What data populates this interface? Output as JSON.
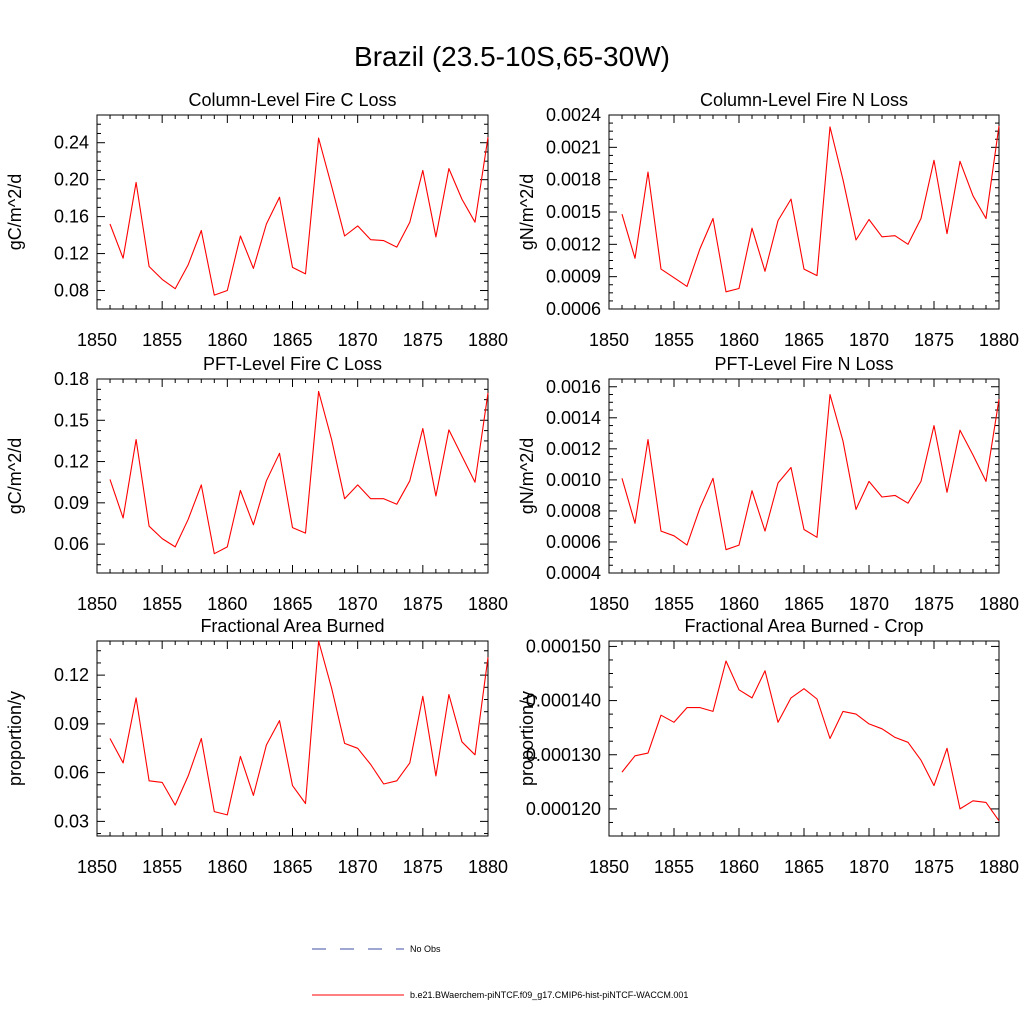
{
  "page_title": "Brazil (23.5-10S,65-30W)",
  "colors": {
    "model_line": "#ff0000",
    "obs_line": "#3b4fa6",
    "axis": "#000000"
  },
  "legend": {
    "obs_label": "No Obs",
    "model_label": "b.e21.BWaerchem-piNTCF.f09_g17.CMIP6-hist-piNTCF-WACCM.001"
  },
  "chart_data": [
    {
      "type": "line",
      "title": "Column-Level Fire C Loss",
      "ylabel": "gC/m^2/d",
      "xlim": [
        1850,
        1880
      ],
      "ylim": [
        0.06,
        0.27
      ],
      "xticks": [
        "1850",
        "1855",
        "1860",
        "1865",
        "1870",
        "1875",
        "1880"
      ],
      "yticks": [
        "0.08",
        "0.12",
        "0.16",
        "0.20",
        "0.24"
      ],
      "x": [
        1851,
        1852,
        1853,
        1854,
        1855,
        1856,
        1857,
        1858,
        1859,
        1860,
        1861,
        1862,
        1863,
        1864,
        1865,
        1866,
        1867,
        1868,
        1869,
        1870,
        1871,
        1872,
        1873,
        1874,
        1875,
        1876,
        1877,
        1878,
        1879,
        1880
      ],
      "y": [
        0.152,
        0.115,
        0.197,
        0.106,
        0.092,
        0.082,
        0.108,
        0.145,
        0.075,
        0.08,
        0.139,
        0.104,
        0.152,
        0.181,
        0.105,
        0.098,
        0.245,
        0.193,
        0.139,
        0.15,
        0.135,
        0.134,
        0.127,
        0.154,
        0.21,
        0.138,
        0.212,
        0.179,
        0.154,
        0.246
      ]
    },
    {
      "type": "line",
      "title": "Column-Level Fire N Loss",
      "ylabel": "gN/m^2/d",
      "xlim": [
        1850,
        1880
      ],
      "ylim": [
        0.0006,
        0.0024
      ],
      "xticks": [
        "1850",
        "1855",
        "1860",
        "1865",
        "1870",
        "1875",
        "1880"
      ],
      "yticks": [
        "0.0006",
        "0.0009",
        "0.0012",
        "0.0015",
        "0.0018",
        "0.0021",
        "0.0024"
      ],
      "x": [
        1851,
        1852,
        1853,
        1854,
        1855,
        1856,
        1857,
        1858,
        1859,
        1860,
        1861,
        1862,
        1863,
        1864,
        1865,
        1866,
        1867,
        1868,
        1869,
        1870,
        1871,
        1872,
        1873,
        1874,
        1875,
        1876,
        1877,
        1878,
        1879,
        1880
      ],
      "y": [
        0.00148,
        0.00107,
        0.00187,
        0.00097,
        0.00089,
        0.00081,
        0.00116,
        0.00144,
        0.00076,
        0.00079,
        0.00135,
        0.00095,
        0.00142,
        0.00162,
        0.00097,
        0.00091,
        0.00229,
        0.0018,
        0.00124,
        0.00143,
        0.00127,
        0.00128,
        0.0012,
        0.00144,
        0.00198,
        0.0013,
        0.00197,
        0.00165,
        0.00144,
        0.0023
      ]
    },
    {
      "type": "line",
      "title": "PFT-Level Fire C Loss",
      "ylabel": "gC/m^2/d",
      "xlim": [
        1850,
        1880
      ],
      "ylim": [
        0.039,
        0.18
      ],
      "xticks": [
        "1850",
        "1855",
        "1860",
        "1865",
        "1870",
        "1875",
        "1880"
      ],
      "yticks": [
        "0.06",
        "0.09",
        "0.12",
        "0.15",
        "0.18"
      ],
      "x": [
        1851,
        1852,
        1853,
        1854,
        1855,
        1856,
        1857,
        1858,
        1859,
        1860,
        1861,
        1862,
        1863,
        1864,
        1865,
        1866,
        1867,
        1868,
        1869,
        1870,
        1871,
        1872,
        1873,
        1874,
        1875,
        1876,
        1877,
        1878,
        1879,
        1880
      ],
      "y": [
        0.107,
        0.079,
        0.136,
        0.073,
        0.064,
        0.058,
        0.078,
        0.103,
        0.053,
        0.058,
        0.099,
        0.074,
        0.106,
        0.126,
        0.072,
        0.068,
        0.171,
        0.136,
        0.093,
        0.103,
        0.093,
        0.093,
        0.089,
        0.106,
        0.144,
        0.095,
        0.143,
        0.124,
        0.105,
        0.17
      ]
    },
    {
      "type": "line",
      "title": "PFT-Level Fire N Loss",
      "ylabel": "gN/m^2/d",
      "xlim": [
        1850,
        1880
      ],
      "ylim": [
        0.0004,
        0.00165
      ],
      "xticks": [
        "1850",
        "1855",
        "1860",
        "1865",
        "1870",
        "1875",
        "1880"
      ],
      "yticks": [
        "0.0004",
        "0.0006",
        "0.0008",
        "0.0010",
        "0.0012",
        "0.0014",
        "0.0016"
      ],
      "x": [
        1851,
        1852,
        1853,
        1854,
        1855,
        1856,
        1857,
        1858,
        1859,
        1860,
        1861,
        1862,
        1863,
        1864,
        1865,
        1866,
        1867,
        1868,
        1869,
        1870,
        1871,
        1872,
        1873,
        1874,
        1875,
        1876,
        1877,
        1878,
        1879,
        1880
      ],
      "y": [
        0.00101,
        0.00072,
        0.00126,
        0.00067,
        0.00064,
        0.00058,
        0.00082,
        0.00101,
        0.00055,
        0.00058,
        0.00093,
        0.00067,
        0.00098,
        0.00108,
        0.00068,
        0.00063,
        0.00155,
        0.00125,
        0.00081,
        0.00099,
        0.00089,
        0.0009,
        0.00085,
        0.00099,
        0.00135,
        0.00092,
        0.00132,
        0.00116,
        0.00099,
        0.00152
      ]
    },
    {
      "type": "line",
      "title": "Fractional Area Burned",
      "ylabel": "proportion/y",
      "xlim": [
        1850,
        1880
      ],
      "ylim": [
        0.021,
        0.141
      ],
      "xticks": [
        "1850",
        "1855",
        "1860",
        "1865",
        "1870",
        "1875",
        "1880"
      ],
      "yticks": [
        "0.03",
        "0.06",
        "0.09",
        "0.12"
      ],
      "x": [
        1851,
        1852,
        1853,
        1854,
        1855,
        1856,
        1857,
        1858,
        1859,
        1860,
        1861,
        1862,
        1863,
        1864,
        1865,
        1866,
        1867,
        1868,
        1869,
        1870,
        1871,
        1872,
        1873,
        1874,
        1875,
        1876,
        1877,
        1878,
        1879,
        1880
      ],
      "y": [
        0.081,
        0.066,
        0.106,
        0.055,
        0.054,
        0.04,
        0.058,
        0.081,
        0.036,
        0.034,
        0.07,
        0.046,
        0.077,
        0.092,
        0.052,
        0.041,
        0.141,
        0.112,
        0.078,
        0.075,
        0.065,
        0.053,
        0.055,
        0.066,
        0.107,
        0.058,
        0.108,
        0.079,
        0.071,
        0.131
      ]
    },
    {
      "type": "line",
      "title": "Fractional Area Burned - Crop",
      "ylabel": "proportion/y",
      "xlim": [
        1850,
        1880
      ],
      "ylim": [
        0.000115,
        0.000151
      ],
      "xticks": [
        "1850",
        "1855",
        "1860",
        "1865",
        "1870",
        "1875",
        "1880"
      ],
      "yticks": [
        "0.000120",
        "0.000130",
        "0.000140",
        "0.000150"
      ],
      "x": [
        1851,
        1852,
        1853,
        1854,
        1855,
        1856,
        1857,
        1858,
        1859,
        1860,
        1861,
        1862,
        1863,
        1864,
        1865,
        1866,
        1867,
        1868,
        1869,
        1870,
        1871,
        1872,
        1873,
        1874,
        1875,
        1876,
        1877,
        1878,
        1879,
        1880
      ],
      "y": [
        0.0001268,
        0.0001298,
        0.0001303,
        0.0001373,
        0.000136,
        0.0001387,
        0.0001387,
        0.000138,
        0.0001473,
        0.000142,
        0.0001405,
        0.0001455,
        0.000136,
        0.0001405,
        0.0001422,
        0.0001403,
        0.000133,
        0.000138,
        0.0001375,
        0.0001357,
        0.0001348,
        0.0001332,
        0.0001323,
        0.000129,
        0.0001243,
        0.0001312,
        0.00012,
        0.0001215,
        0.0001212,
        0.0001178
      ]
    }
  ]
}
